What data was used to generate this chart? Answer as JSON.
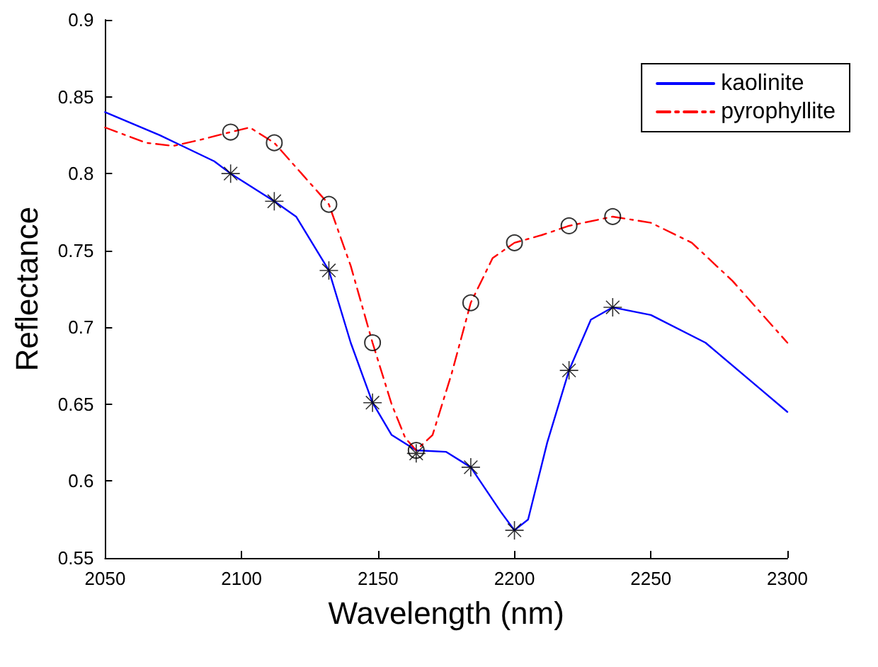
{
  "chart_data": {
    "type": "line",
    "xlabel": "Wavelength (nm)",
    "ylabel": "Reflectance",
    "xlim": [
      2050,
      2300
    ],
    "xticks": [
      2050,
      2100,
      2150,
      2200,
      2250,
      2300
    ],
    "ylim": [
      0.55,
      0.9
    ],
    "yticks": [
      0.55,
      0.6,
      0.65,
      0.7,
      0.75,
      0.8,
      0.85,
      0.9
    ],
    "grid": false,
    "legend": "top right",
    "series": [
      {
        "name": "kaolinite",
        "color": "#0000ff",
        "line_style": "solid",
        "marker": "none",
        "x": [
          2050,
          2070,
          2090,
          2096,
          2112,
          2120,
          2132,
          2140,
          2148,
          2155,
          2164,
          2175,
          2184,
          2195,
          2200,
          2205,
          2212,
          2220,
          2228,
          2236,
          2250,
          2270,
          2290,
          2300
        ],
        "values": [
          0.84,
          0.825,
          0.808,
          0.8,
          0.782,
          0.772,
          0.737,
          0.69,
          0.651,
          0.63,
          0.62,
          0.619,
          0.609,
          0.58,
          0.568,
          0.575,
          0.625,
          0.672,
          0.705,
          0.713,
          0.708,
          0.69,
          0.66,
          0.645
        ]
      },
      {
        "name": "pyrophyllite",
        "color": "#ff0000",
        "line_style": "dashed",
        "marker": "none",
        "x": [
          2050,
          2065,
          2075,
          2085,
          2096,
          2103,
          2112,
          2122,
          2132,
          2140,
          2148,
          2155,
          2160,
          2164,
          2170,
          2177,
          2184,
          2192,
          2200,
          2210,
          2220,
          2236,
          2250,
          2265,
          2280,
          2300
        ],
        "values": [
          0.83,
          0.82,
          0.818,
          0.822,
          0.827,
          0.83,
          0.82,
          0.8,
          0.78,
          0.74,
          0.69,
          0.65,
          0.628,
          0.62,
          0.63,
          0.67,
          0.716,
          0.745,
          0.755,
          0.76,
          0.766,
          0.772,
          0.768,
          0.755,
          0.73,
          0.69
        ]
      },
      {
        "type": "scatter",
        "color": "#000000",
        "marker": "cross",
        "x": [
          2096,
          2112,
          2132,
          2148,
          2164,
          2184,
          2200,
          2220,
          2236
        ],
        "values": [
          0.8,
          0.782,
          0.737,
          0.651,
          0.618,
          0.609,
          0.568,
          0.672,
          0.713
        ]
      },
      {
        "type": "scatter",
        "color": "#000000",
        "marker": "circle",
        "x": [
          2096,
          2112,
          2132,
          2148,
          2164,
          2184,
          2200,
          2220,
          2236
        ],
        "values": [
          0.827,
          0.82,
          0.78,
          0.69,
          0.62,
          0.716,
          0.755,
          0.766,
          0.772
        ]
      }
    ]
  }
}
